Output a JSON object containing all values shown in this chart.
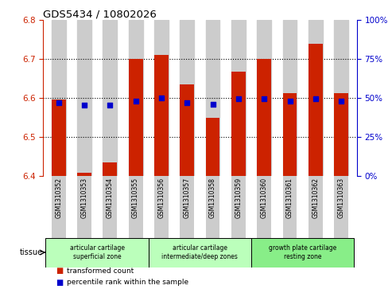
{
  "title": "GDS5434 / 10802026",
  "samples": [
    "GSM1310352",
    "GSM1310353",
    "GSM1310354",
    "GSM1310355",
    "GSM1310356",
    "GSM1310357",
    "GSM1310358",
    "GSM1310359",
    "GSM1310360",
    "GSM1310361",
    "GSM1310362",
    "GSM1310363"
  ],
  "bar_values": [
    6.595,
    6.408,
    6.435,
    6.7,
    6.71,
    6.635,
    6.548,
    6.668,
    6.7,
    6.613,
    6.74,
    6.613
  ],
  "blue_dot_values": [
    6.588,
    6.582,
    6.581,
    6.591,
    6.6,
    6.588,
    6.583,
    6.597,
    6.598,
    6.591,
    6.598,
    6.591
  ],
  "ylim": [
    6.4,
    6.8
  ],
  "yticks": [
    6.4,
    6.5,
    6.6,
    6.7,
    6.8
  ],
  "right_yticks": [
    0,
    25,
    50,
    75,
    100
  ],
  "right_ylim": [
    0,
    100
  ],
  "bar_color": "#cc2200",
  "dot_color": "#0000cc",
  "col_bg_color": "#cccccc",
  "plot_bg": "#ffffff",
  "tissue_groups": [
    {
      "label": "articular cartilage\nsuperficial zone",
      "start": 0,
      "end": 3,
      "color": "#bbffbb"
    },
    {
      "label": "articular cartilage\nintermediate/deep zones",
      "start": 4,
      "end": 7,
      "color": "#bbffbb"
    },
    {
      "label": "growth plate cartilage\nresting zone",
      "start": 8,
      "end": 11,
      "color": "#88ee88"
    }
  ],
  "legend_items": [
    {
      "label": "transformed count",
      "color": "#cc2200",
      "marker": "s"
    },
    {
      "label": "percentile rank within the sample",
      "color": "#0000cc",
      "marker": "s"
    }
  ],
  "title_color": "#000000",
  "left_axis_color": "#cc2200",
  "right_axis_color": "#0000cc",
  "gridline_color": "#000000",
  "base_value": 6.4,
  "bar_width": 0.55
}
